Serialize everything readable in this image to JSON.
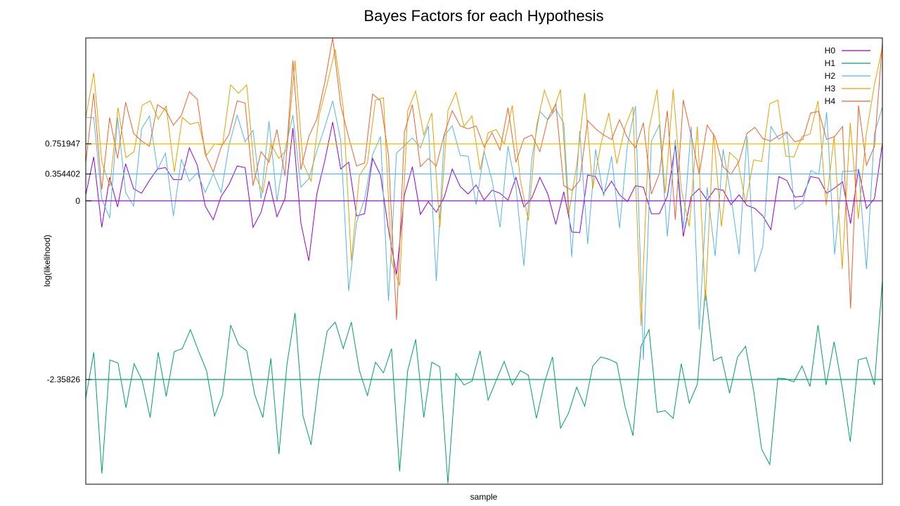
{
  "chart_data": {
    "type": "line",
    "title": "Bayes Factors for each Hypothesis",
    "xlabel": "sample",
    "ylabel": "log(likelihood)",
    "ylim": [
      -3.74,
      2.15
    ],
    "y_ticks": [
      {
        "value": 0.751947,
        "label": "0.751947",
        "color": "#e6c000"
      },
      {
        "value": 0.354402,
        "label": "0.354402",
        "color": "#56b4e9"
      },
      {
        "value": 0,
        "label": "0",
        "color": "#9400d3"
      },
      {
        "value": -2.35826,
        "label": "-2.35826",
        "color": "#009e73"
      }
    ],
    "legend_position": "top-right",
    "grid": false,
    "series": [
      {
        "name": "H0",
        "color": "#9400d3",
        "values": [
          0.08,
          0.58,
          -0.35,
          0.31,
          -0.08,
          0.49,
          0.16,
          0.1,
          0.27,
          0.42,
          0.44,
          0.28,
          0.28,
          0.7,
          0.47,
          -0.07,
          -0.25,
          0.06,
          0.22,
          0.46,
          0.44,
          -0.35,
          -0.15,
          0.26,
          -0.21,
          0.03,
          0.96,
          -0.29,
          -0.79,
          0.09,
          0.53,
          1.04,
          0.42,
          0.51,
          -0.2,
          -0.17,
          0.56,
          0.34,
          -0.38,
          -0.97,
          0.08,
          0.45,
          -0.18,
          -0.01,
          -0.15,
          0.05,
          0.42,
          0.19,
          0.09,
          0.21,
          0.01,
          0.14,
          0.1,
          0.01,
          0.31,
          -0.08,
          0.04,
          0.31,
          0.09,
          -0.31,
          0.12,
          -0.41,
          -0.42,
          0.34,
          0.32,
          0.1,
          0.26,
          0.08,
          -0.01,
          0.2,
          0.18,
          -0.17,
          -0.17,
          0.06,
          0.73,
          -0.47,
          0.06,
          0.16,
          0.01,
          0.16,
          0.14,
          -0.05,
          0.08,
          -0.06,
          -0.1,
          -0.2,
          -0.38,
          0.32,
          0.27,
          0.05,
          0.06,
          0.32,
          0.3,
          0.1,
          0.17,
          0.25,
          -0.3,
          0.42,
          -0.1,
          0.03,
          0.76
        ]
      },
      {
        "name": "H1",
        "color": "#009e73",
        "values": [
          -2.6,
          -2.0,
          -3.6,
          -2.1,
          -2.14,
          -2.73,
          -2.15,
          -2.37,
          -2.86,
          -2.0,
          -2.58,
          -1.99,
          -1.95,
          -1.7,
          -1.98,
          -2.24,
          -2.84,
          -2.56,
          -1.64,
          -1.9,
          -1.98,
          -2.56,
          -2.86,
          -2.08,
          -3.34,
          -2.16,
          -1.48,
          -2.84,
          -3.22,
          -2.34,
          -1.72,
          -1.6,
          -1.95,
          -1.6,
          -2.24,
          -2.57,
          -2.13,
          -2.27,
          -1.95,
          -3.57,
          -2.24,
          -1.83,
          -2.86,
          -2.13,
          -2.19,
          -3.73,
          -2.28,
          -2.43,
          -2.38,
          -1.98,
          -2.63,
          -2.37,
          -2.12,
          -2.43,
          -2.24,
          -2.3,
          -2.87,
          -2.4,
          -2.06,
          -3.0,
          -2.8,
          -2.46,
          -2.71,
          -2.18,
          -2.06,
          -2.09,
          -2.14,
          -2.71,
          -3.1,
          -1.92,
          -1.7,
          -2.79,
          -2.77,
          -2.87,
          -2.15,
          -2.67,
          -2.42,
          -1.18,
          -2.11,
          -2.06,
          -2.54,
          -2.06,
          -1.92,
          -2.51,
          -3.28,
          -3.48,
          -2.34,
          -2.35,
          -2.39,
          -2.18,
          -2.45,
          -1.64,
          -2.43,
          -1.86,
          -2.46,
          -3.18,
          -2.1,
          -2.07,
          -2.43,
          -1.05
        ]
      },
      {
        "name": "H2",
        "color": "#56b4e9",
        "values": [
          1.1,
          1.1,
          0.03,
          -0.23,
          1.1,
          0.11,
          -0.07,
          0.95,
          1.12,
          0.41,
          0.63,
          -0.2,
          0.55,
          0.26,
          0.37,
          0.11,
          0.36,
          0.11,
          0.74,
          1.13,
          0.78,
          0.93,
          0.03,
          1.05,
          0.0,
          0.67,
          1.13,
          0.18,
          0.29,
          0.66,
          0.97,
          1.32,
          0.8,
          -1.19,
          -0.28,
          0.02,
          0.61,
          0.85,
          -1.32,
          0.63,
          0.73,
          0.83,
          0.7,
          0.99,
          -1.06,
          0.86,
          0.99,
          0.6,
          0.59,
          -0.05,
          0.65,
          0.27,
          -0.35,
          0.72,
          0.18,
          -0.86,
          0.57,
          1.18,
          1.07,
          1.21,
          1.02,
          -0.74,
          0.92,
          -0.57,
          0.68,
          0.06,
          0.59,
          -0.36,
          0.74,
          1.25,
          -2.1,
          0.79,
          1.0,
          -0.47,
          0.81,
          -0.37,
          0.98,
          -1.7,
          0.18,
          -0.73,
          0.68,
          0.06,
          -0.71,
          0.85,
          -0.94,
          -0.6,
          0.98,
          0.81,
          0.9,
          -0.11,
          -0.03,
          0.4,
          0.35,
          1.17,
          -0.71,
          0.39,
          0.39,
          0.41,
          -0.9,
          0.89,
          1.24
        ]
      },
      {
        "name": "H3",
        "color": "#e6a000",
        "values": [
          1.1,
          1.69,
          0.51,
          0.19,
          1.23,
          0.57,
          0.65,
          1.26,
          1.32,
          1.08,
          1.25,
          0.38,
          1.1,
          1.01,
          1.04,
          0.6,
          0.75,
          0.74,
          1.53,
          1.42,
          1.53,
          0.35,
          0.11,
          0.75,
          0.56,
          0.68,
          1.85,
          0.5,
          0.26,
          1.13,
          1.54,
          2.0,
          1.23,
          -0.79,
          0.33,
          0.5,
          1.33,
          1.36,
          -0.8,
          -1.12,
          1.19,
          1.45,
          0.87,
          1.16,
          -0.35,
          1.19,
          1.43,
          0.98,
          1.12,
          0.41,
          0.9,
          0.94,
          0.75,
          1.26,
          0.28,
          -0.26,
          0.98,
          1.46,
          1.16,
          1.47,
          -0.18,
          0.46,
          1.42,
          0.16,
          0.74,
          1.16,
          0.49,
          0.97,
          1.24,
          -1.65,
          0.95,
          1.47,
          0.1,
          1.47,
          0.15,
          -0.34,
          0.98,
          -1.32,
          0.89,
          -0.34,
          0.64,
          0.54,
          -0.03,
          0.54,
          0.52,
          1.28,
          1.33,
          0.59,
          0.58,
          0.85,
          0.88,
          1.32,
          -0.06,
          0.85,
          -0.9,
          1.03,
          -0.24,
          0.89,
          1.53,
          2.03
        ]
      },
      {
        "name": "H4",
        "color": "#f06030",
        "values": [
          0.5,
          1.42,
          0.15,
          1.1,
          0.56,
          1.3,
          0.89,
          0.79,
          0.72,
          1.27,
          1.2,
          1.0,
          1.13,
          1.44,
          1.34,
          0.61,
          0.38,
          0.71,
          0.88,
          1.32,
          1.29,
          0.2,
          0.65,
          0.51,
          0.94,
          0.33,
          1.85,
          0.41,
          0.85,
          1.08,
          1.56,
          2.15,
          1.26,
          0.84,
          0.46,
          0.5,
          1.41,
          1.32,
          0.6,
          -1.57,
          0.91,
          1.27,
          0.45,
          0.56,
          0.46,
          0.88,
          1.19,
          0.99,
          0.95,
          0.99,
          0.71,
          0.9,
          0.67,
          1.23,
          0.51,
          0.82,
          0.87,
          0.65,
          1.08,
          1.28,
          0.2,
          0.14,
          0.27,
          1.06,
          0.95,
          0.87,
          0.81,
          1.07,
          0.83,
          0.7,
          1.03,
          0.09,
          0.36,
          1.19,
          -0.25,
          1.33,
          0.86,
          0.35,
          1.0,
          0.84,
          0.45,
          0.35,
          0.52,
          0.89,
          0.97,
          0.82,
          0.79,
          0.86,
          0.91,
          0.78,
          0.81,
          1.16,
          1.18,
          0.81,
          0.85,
          0.98,
          -1.42,
          1.26,
          0.47,
          0.72,
          2.1
        ]
      }
    ]
  }
}
